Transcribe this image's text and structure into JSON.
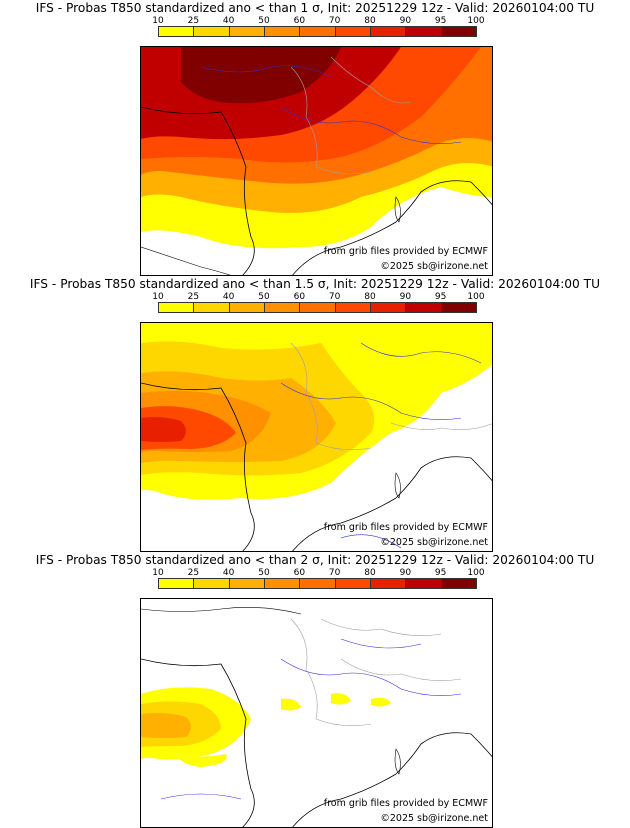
{
  "colorbar": {
    "ticks": [
      "10",
      "25",
      "40",
      "50",
      "60",
      "70",
      "80",
      "90",
      "95",
      "100"
    ],
    "colors": [
      "#ffff00",
      "#ffd700",
      "#ffb000",
      "#ff9000",
      "#ff7000",
      "#ff4800",
      "#e82000",
      "#c00000",
      "#800000"
    ]
  },
  "colors": {
    "sea": "#ffffff",
    "coast": "#000000",
    "river": "#3030d0",
    "border": "#a0a0a0",
    "frame": "#000000"
  },
  "panels": [
    {
      "title": "IFS - Probas T850  standardized ano < than 1 σ, Init: 20251229 12z - Valid: 20260104:00 TU",
      "credit_source": "from grib files provided by ECMWF",
      "credit_copyright": "©2025 sb@irizone.net",
      "probability_level": "high"
    },
    {
      "title": "IFS - Probas T850  standardized ano < than 1.5 σ, Init: 20251229 12z - Valid: 20260104:00 TU",
      "credit_source": "from grib files provided by ECMWF",
      "credit_copyright": "©2025 sb@irizone.net",
      "probability_level": "medium"
    },
    {
      "title": "IFS - Probas T850  standardized ano < than 2 σ, Init: 20251229 12z - Valid: 20260104:00 TU",
      "credit_source": "from grib files provided by ECMWF",
      "credit_copyright": "©2025 sb@irizone.net",
      "probability_level": "low"
    }
  ]
}
